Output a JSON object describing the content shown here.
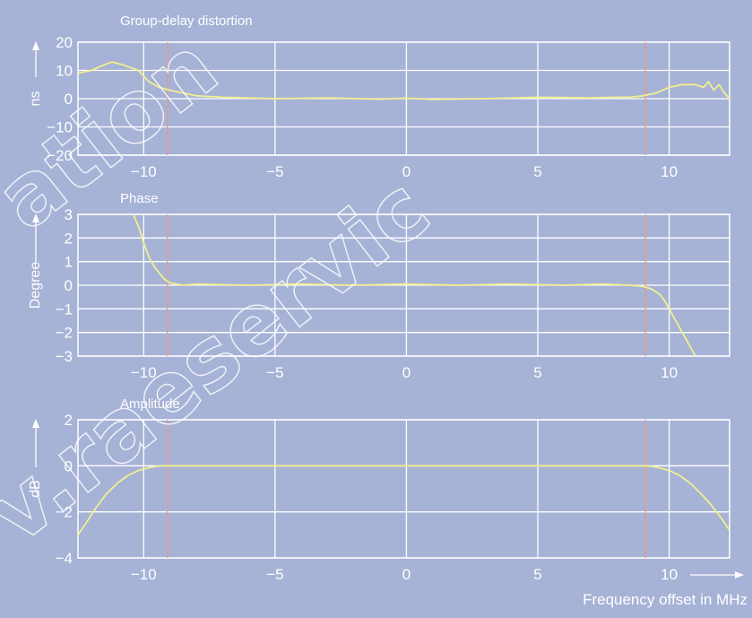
{
  "colors": {
    "background": "#a6b3d6",
    "grid": "#ffffff",
    "trace": "#f1ef8e",
    "marker": "#e39c8a"
  },
  "chart_data": [
    {
      "type": "line",
      "title": "Group-delay distortion",
      "ylabel": "ns",
      "xlim": [
        -12.5,
        12.3
      ],
      "ylim": [
        -20,
        20
      ],
      "xticks": [
        -10,
        -5,
        0,
        5,
        10
      ],
      "yticks": [
        20,
        10,
        0,
        -10,
        -20
      ],
      "grid": true,
      "markers_x": [
        -9.1,
        9.1
      ],
      "series": [
        {
          "x": [
            -12.5,
            -12.0,
            -11.5,
            -11.2,
            -11.0,
            -10.8,
            -10.5,
            -10.2,
            -10.0,
            -9.8,
            -9.6,
            -9.4,
            -9.2,
            -9.0,
            -8.5,
            -8.0,
            -7.0,
            -5.0,
            -3.0,
            -1.0,
            0.0,
            1.0,
            3.0,
            5.0,
            7.0,
            8.0,
            8.5,
            9.0,
            9.5,
            10.0,
            10.5,
            11.0,
            11.3,
            11.5,
            11.7,
            11.9,
            12.1,
            12.3
          ],
          "y": [
            9,
            10,
            12,
            13,
            12.5,
            12,
            11,
            10,
            8,
            6,
            5,
            4,
            3.5,
            3,
            2,
            1,
            0.5,
            0,
            0.3,
            -0.2,
            0.2,
            -0.3,
            0,
            0.5,
            0.3,
            0.5,
            0.5,
            1,
            2,
            4,
            5,
            5,
            4,
            6,
            3,
            5,
            2,
            0
          ]
        }
      ]
    },
    {
      "type": "line",
      "title": "Phase",
      "ylabel": "Degree",
      "xlim": [
        -12.5,
        12.3
      ],
      "ylim": [
        -3,
        3
      ],
      "xticks": [
        -10,
        -5,
        0,
        5,
        10
      ],
      "yticks": [
        3,
        2,
        1,
        0,
        -1,
        -2,
        -3
      ],
      "grid": true,
      "markers_x": [
        -9.1,
        9.1
      ],
      "series": [
        {
          "x": [
            -10.4,
            -10.2,
            -10.0,
            -9.8,
            -9.6,
            -9.4,
            -9.2,
            -9.0,
            -8.5,
            -8.0,
            -6.0,
            -4.0,
            -2.0,
            0.0,
            2.0,
            4.0,
            6.0,
            7.5,
            8.5,
            9.0,
            9.3,
            9.6,
            9.8,
            10.0,
            10.2,
            10.4,
            10.6,
            10.8,
            11.0
          ],
          "y": [
            3.0,
            2.5,
            1.8,
            1.2,
            0.8,
            0.5,
            0.25,
            0.1,
            0.0,
            0.05,
            0.0,
            0.05,
            0.0,
            0.05,
            0.0,
            0.05,
            0.0,
            0.05,
            0.0,
            -0.05,
            -0.15,
            -0.35,
            -0.6,
            -1.0,
            -1.4,
            -1.8,
            -2.2,
            -2.6,
            -3.0
          ]
        }
      ]
    },
    {
      "type": "line",
      "title": "Amplitude",
      "ylabel": "dB",
      "xlabel": "Frequency offset in MHz",
      "xlim": [
        -12.5,
        12.3
      ],
      "ylim": [
        -4,
        2
      ],
      "xticks": [
        -10,
        -5,
        0,
        5,
        10
      ],
      "yticks": [
        2,
        0,
        -2,
        -4
      ],
      "grid": true,
      "markers_x": [
        -9.1,
        9.1
      ],
      "series": [
        {
          "x": [
            -12.5,
            -12.2,
            -11.8,
            -11.4,
            -11.0,
            -10.6,
            -10.2,
            -9.8,
            -9.5,
            -9.2,
            -9.0,
            -7.0,
            -5.0,
            -3.0,
            -1.0,
            0.0,
            1.0,
            3.0,
            5.0,
            7.0,
            9.0,
            9.3,
            9.6,
            10.0,
            10.4,
            10.8,
            11.2,
            11.6,
            12.0,
            12.3
          ],
          "y": [
            -3.0,
            -2.5,
            -1.8,
            -1.2,
            -0.75,
            -0.42,
            -0.2,
            -0.08,
            -0.02,
            0.0,
            0.0,
            0.0,
            0.0,
            0.0,
            0.0,
            0.0,
            0.0,
            0.0,
            0.0,
            0.0,
            0.0,
            -0.02,
            -0.08,
            -0.2,
            -0.42,
            -0.75,
            -1.2,
            -1.7,
            -2.3,
            -2.8
          ]
        }
      ]
    }
  ],
  "watermark": {
    "line1": "ation",
    "line2": "v.raeservic"
  }
}
